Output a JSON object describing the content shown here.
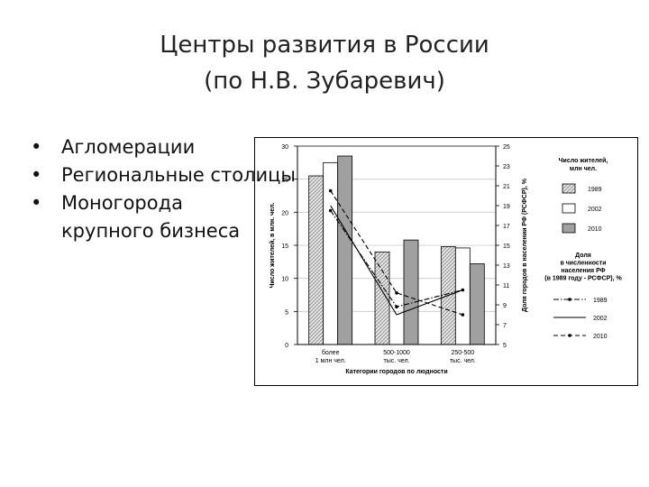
{
  "slide": {
    "title_line1": "Центры развития в России",
    "title_line2": "(по Н.В. Зубаревич)",
    "bullets": [
      {
        "text": "Агломерации"
      },
      {
        "text": "Региональные столицы"
      },
      {
        "text": "Моногорода",
        "text2": "крупного бизнеса"
      }
    ]
  },
  "chart_data": {
    "type": "bar",
    "xlabel": "Категории городов по людности",
    "ylabel": "Число жителей, в млн. чел.",
    "y2label": "Доля городов в населении РФ (РСФСР), %",
    "ylim": [
      0,
      30
    ],
    "y2lim": [
      5,
      25
    ],
    "yticks": [
      "0",
      "5",
      "10",
      "15",
      "20",
      "25",
      "30"
    ],
    "y2ticks": [
      "5",
      "7",
      "9",
      "11",
      "13",
      "15",
      "17",
      "19",
      "21",
      "23",
      "25"
    ],
    "categories": [
      {
        "line1": "более",
        "line2": "1 млн чел."
      },
      {
        "line1": "500-1000",
        "line2": "тыс. чел."
      },
      {
        "line1": "250-500",
        "line2": "тыс. чел."
      }
    ],
    "bar_legend_title": [
      "Число жителей,",
      "млн чел."
    ],
    "line_legend_title": [
      "Доля",
      "в численности",
      "населения РФ",
      "(в 1989 году - РСФСР), %"
    ],
    "bar_series": [
      {
        "name": "1989",
        "values": [
          25.5,
          14.0,
          14.8
        ],
        "style": "hatch",
        "color": "#dcdcdc"
      },
      {
        "name": "2002",
        "values": [
          27.5,
          0,
          14.6
        ],
        "style": "solid",
        "color": "#ffffff"
      },
      {
        "name": "2010",
        "values": [
          28.5,
          15.8,
          12.2
        ],
        "style": "solid",
        "color": "#a0a0a0"
      }
    ],
    "line_series": [
      {
        "name": "1989",
        "values": [
          18.5,
          8.8,
          10.5
        ],
        "style": "dash-dot"
      },
      {
        "name": "2002",
        "values": [
          19.0,
          8.0,
          10.5
        ],
        "style": "solid"
      },
      {
        "name": "2010",
        "values": [
          20.5,
          10.2,
          8.0
        ],
        "style": "dashed"
      }
    ]
  }
}
